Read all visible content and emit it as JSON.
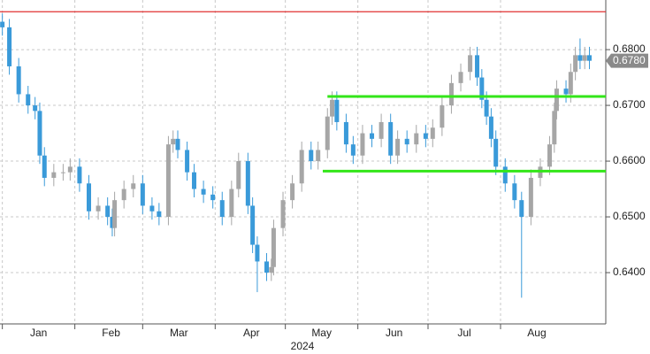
{
  "chart_data": {
    "type": "candlestick",
    "xlabel": "2024",
    "x": [
      0,
      3,
      7,
      11,
      14,
      16,
      18,
      22,
      26,
      29,
      33,
      37,
      41,
      45,
      47,
      48,
      52,
      56,
      60,
      64,
      67,
      71,
      73,
      75,
      79,
      82,
      86,
      90,
      94,
      98,
      101,
      105,
      107,
      109,
      113,
      115,
      116,
      120,
      124,
      128,
      132,
      135,
      139,
      141,
      143,
      147,
      150,
      154,
      158,
      162,
      166,
      169,
      173,
      177,
      181,
      184,
      188,
      192,
      196,
      200,
      203,
      205,
      207,
      209,
      211,
      215,
      219,
      222,
      226,
      230,
      234,
      236,
      237,
      241,
      243,
      245,
      247,
      249,
      251
    ],
    "open": [
      0.685,
      0.684,
      0.677,
      0.672,
      0.67,
      0.669,
      0.661,
      0.657,
      0.658,
      0.658,
      0.659,
      0.656,
      0.651,
      0.652,
      0.65,
      0.648,
      0.653,
      0.655,
      0.656,
      0.652,
      0.651,
      0.65,
      0.663,
      0.664,
      0.662,
      0.658,
      0.655,
      0.654,
      0.653,
      0.65,
      0.655,
      0.66,
      0.652,
      0.645,
      0.642,
      0.64,
      0.641,
      0.648,
      0.653,
      0.656,
      0.662,
      0.66,
      0.662,
      0.668,
      0.671,
      0.667,
      0.663,
      0.661,
      0.665,
      0.664,
      0.667,
      0.661,
      0.664,
      0.663,
      0.665,
      0.664,
      0.666,
      0.67,
      0.674,
      0.676,
      0.679,
      0.675,
      0.671,
      0.668,
      0.664,
      0.659,
      0.656,
      0.653,
      0.65,
      0.657,
      0.659,
      0.663,
      0.669,
      0.673,
      0.672,
      0.676,
      0.679,
      0.678,
      0.679
    ],
    "high": [
      0.6865,
      0.6855,
      0.6785,
      0.6735,
      0.6715,
      0.6705,
      0.6625,
      0.6595,
      0.6595,
      0.6605,
      0.6605,
      0.6575,
      0.6535,
      0.6535,
      0.6515,
      0.6545,
      0.6565,
      0.6575,
      0.6575,
      0.6535,
      0.6525,
      0.6645,
      0.6655,
      0.6655,
      0.6635,
      0.6595,
      0.6565,
      0.6555,
      0.6545,
      0.6565,
      0.6615,
      0.6615,
      0.6535,
      0.6465,
      0.6435,
      0.6425,
      0.6495,
      0.6545,
      0.6575,
      0.6635,
      0.6635,
      0.6635,
      0.6695,
      0.6725,
      0.6725,
      0.6685,
      0.6645,
      0.6665,
      0.6665,
      0.6685,
      0.6685,
      0.6655,
      0.6655,
      0.6665,
      0.6665,
      0.6675,
      0.6715,
      0.6755,
      0.6775,
      0.6805,
      0.6805,
      0.6765,
      0.6725,
      0.6695,
      0.6655,
      0.6605,
      0.6575,
      0.6545,
      0.6585,
      0.6605,
      0.6645,
      0.6705,
      0.6745,
      0.6745,
      0.6775,
      0.6805,
      0.682,
      0.6805,
      0.6805
    ],
    "low": [
      0.6825,
      0.6755,
      0.6705,
      0.6685,
      0.6675,
      0.6595,
      0.6555,
      0.6555,
      0.6565,
      0.6565,
      0.6545,
      0.6495,
      0.6495,
      0.6485,
      0.6465,
      0.6465,
      0.6515,
      0.6535,
      0.6505,
      0.6495,
      0.6485,
      0.6485,
      0.6615,
      0.6605,
      0.6565,
      0.6535,
      0.6525,
      0.6515,
      0.6485,
      0.6485,
      0.6535,
      0.6505,
      0.6435,
      0.6365,
      0.6385,
      0.6385,
      0.6395,
      0.6465,
      0.6515,
      0.6545,
      0.6585,
      0.6585,
      0.6605,
      0.6665,
      0.6655,
      0.6615,
      0.6595,
      0.6595,
      0.6625,
      0.6625,
      0.6595,
      0.6595,
      0.6615,
      0.6615,
      0.6625,
      0.6625,
      0.6645,
      0.6685,
      0.6725,
      0.6745,
      0.6735,
      0.6695,
      0.6665,
      0.6625,
      0.6575,
      0.6545,
      0.6515,
      0.6355,
      0.6485,
      0.6555,
      0.6575,
      0.6615,
      0.6675,
      0.6705,
      0.6705,
      0.6745,
      0.6765,
      0.6765,
      0.6765
    ],
    "close": [
      0.684,
      0.677,
      0.672,
      0.67,
      0.669,
      0.661,
      0.657,
      0.658,
      0.658,
      0.659,
      0.656,
      0.651,
      0.652,
      0.65,
      0.648,
      0.653,
      0.655,
      0.656,
      0.652,
      0.651,
      0.65,
      0.663,
      0.664,
      0.662,
      0.658,
      0.655,
      0.654,
      0.653,
      0.65,
      0.655,
      0.66,
      0.652,
      0.645,
      0.642,
      0.64,
      0.641,
      0.648,
      0.653,
      0.656,
      0.662,
      0.66,
      0.662,
      0.668,
      0.671,
      0.667,
      0.663,
      0.661,
      0.665,
      0.664,
      0.667,
      0.661,
      0.664,
      0.663,
      0.665,
      0.664,
      0.666,
      0.67,
      0.674,
      0.676,
      0.679,
      0.675,
      0.671,
      0.668,
      0.664,
      0.659,
      0.656,
      0.653,
      0.65,
      0.657,
      0.659,
      0.663,
      0.669,
      0.673,
      0.672,
      0.676,
      0.679,
      0.678,
      0.679,
      0.678
    ],
    "up_color": "#a6a6a6",
    "down_color": "#3a9ad9",
    "xlim": [
      -1,
      258
    ],
    "xticks": [
      {
        "value": 0,
        "label": "Jan"
      },
      {
        "value": 31,
        "label": "Feb"
      },
      {
        "value": 60,
        "label": "Mar"
      },
      {
        "value": 91,
        "label": "Apr"
      },
      {
        "value": 121,
        "label": "May"
      },
      {
        "value": 152,
        "label": "Jun"
      },
      {
        "value": 182,
        "label": "Jul"
      },
      {
        "value": 213,
        "label": "Aug"
      }
    ],
    "ylim": [
      0.6308,
      0.6889
    ],
    "yticks": [
      {
        "value": 0.64,
        "label": "0.6400"
      },
      {
        "value": 0.65,
        "label": "0.6500"
      },
      {
        "value": 0.66,
        "label": "0.6600"
      },
      {
        "value": 0.67,
        "label": "0.6700"
      },
      {
        "value": 0.68,
        "label": "0.6800"
      }
    ],
    "grid": true,
    "level_lines": [
      {
        "value": 0.6868,
        "color": "#e03030"
      }
    ],
    "range_lines": [
      {
        "value": 0.6716,
        "x": [
          139,
          258
        ],
        "color": "#33e619"
      },
      {
        "value": 0.6582,
        "x": [
          137,
          258
        ],
        "color": "#33e619"
      }
    ],
    "last_price": {
      "value": 0.678,
      "label": "0.6780"
    }
  }
}
